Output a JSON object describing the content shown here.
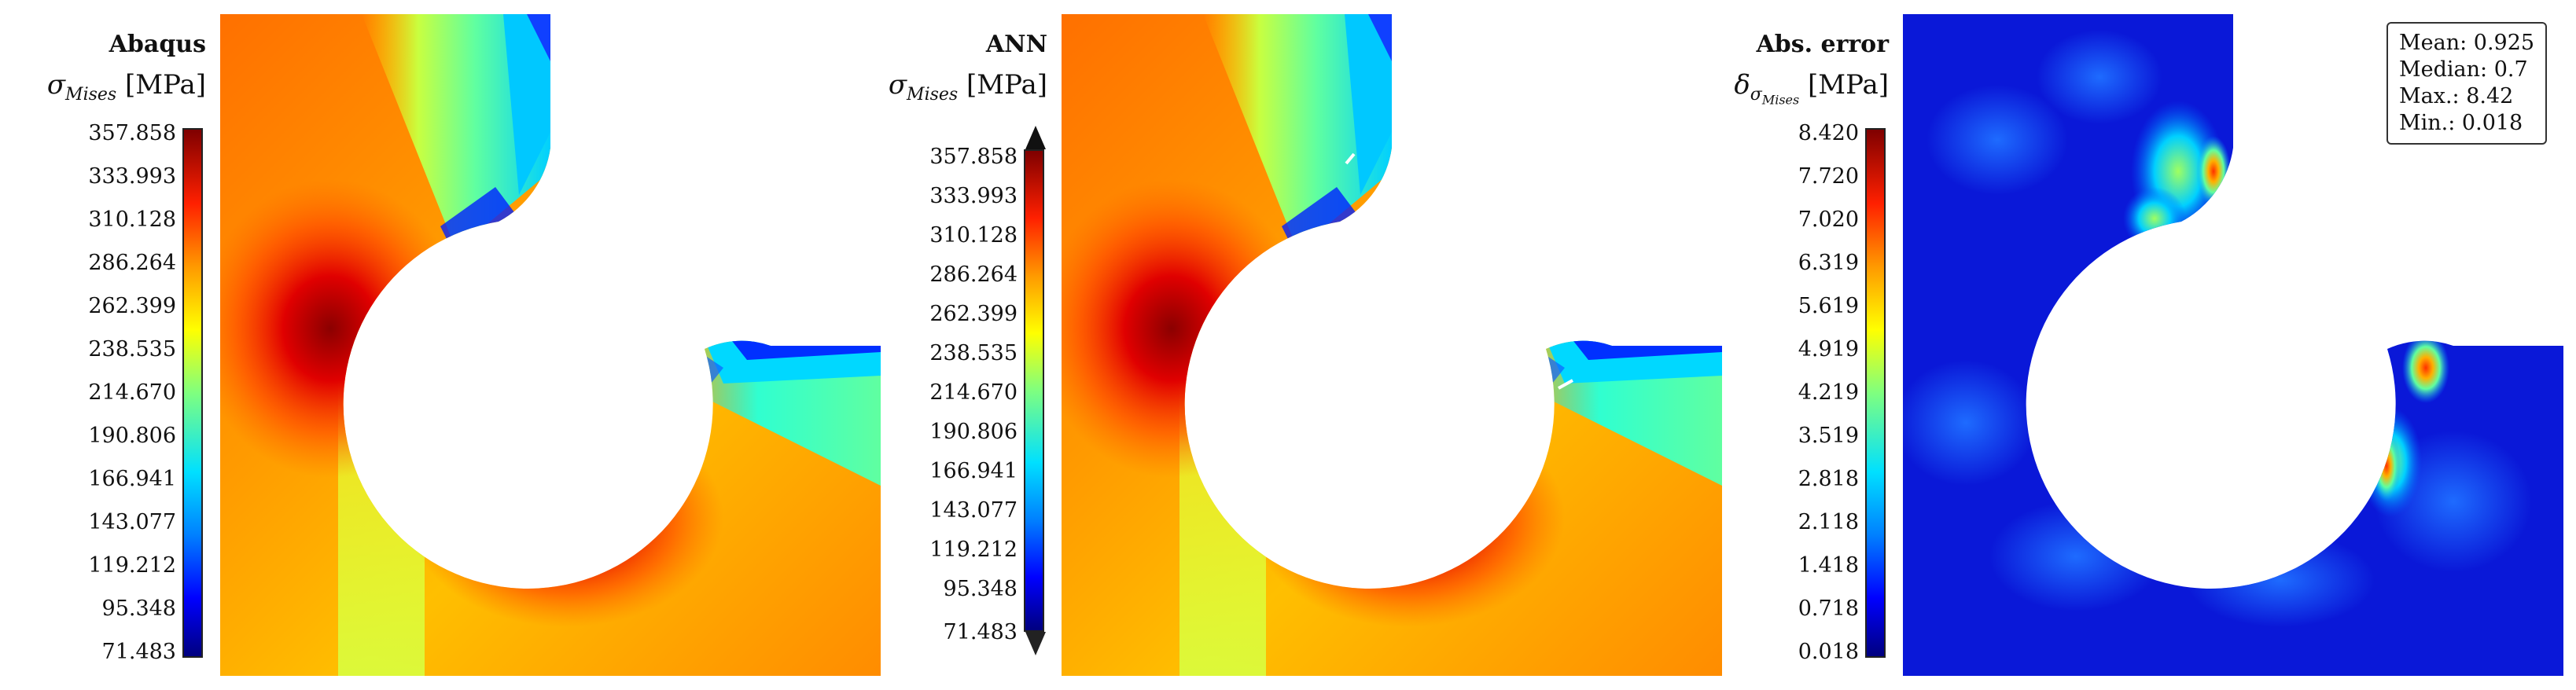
{
  "panels": [
    {
      "id": "abaqus",
      "title": "Abaqus",
      "quantity_symbol": "σ",
      "quantity_subscript": "Mises",
      "unit": "[MPa]",
      "colorbar_ticks": [
        "357.858",
        "333.993",
        "310.128",
        "286.264",
        "262.399",
        "238.535",
        "214.670",
        "190.806",
        "166.941",
        "143.077",
        "119.212",
        "95.348",
        "71.483"
      ]
    },
    {
      "id": "ann",
      "title": "ANN",
      "quantity_symbol": "σ",
      "quantity_subscript": "Mises",
      "unit": "[MPa]",
      "colorbar_ticks": [
        "357.858",
        "333.993",
        "310.128",
        "286.264",
        "262.399",
        "238.535",
        "214.670",
        "190.806",
        "166.941",
        "143.077",
        "119.212",
        "95.348",
        "71.483"
      ]
    },
    {
      "id": "abs_error",
      "title": "Abs. error",
      "quantity_symbol": "δ",
      "quantity_subscript": "σ",
      "quantity_subsubscript": "Mises",
      "unit": "[MPa]",
      "colorbar_ticks": [
        "8.420",
        "7.720",
        "7.020",
        "6.319",
        "5.619",
        "4.919",
        "4.219",
        "3.519",
        "2.818",
        "2.118",
        "1.418",
        "0.718",
        "0.018"
      ]
    }
  ],
  "stats": {
    "mean": "Mean: 0.925",
    "median": "Median: 0.7",
    "max": "Max.: 8.42",
    "min": "Min.: 0.018"
  },
  "colors": {
    "colormap": "jet",
    "low": "#00007f",
    "high": "#7f0000"
  }
}
